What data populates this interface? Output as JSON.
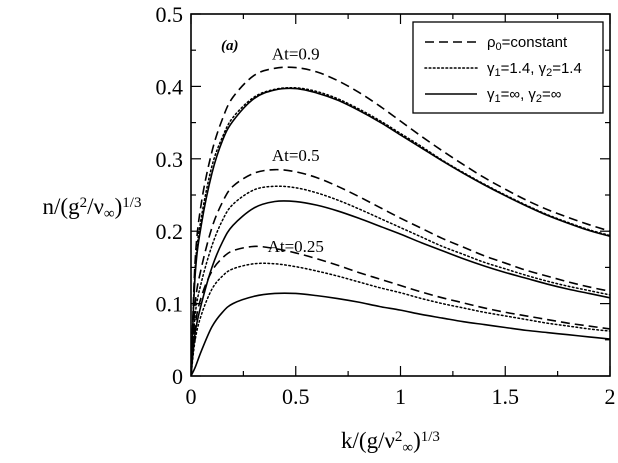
{
  "chart_data": {
    "type": "line",
    "panel_label": "(a)",
    "xlim": [
      0,
      2
    ],
    "ylim": [
      0,
      0.5
    ],
    "x_ticks": [
      "0",
      "0.5",
      "1",
      "1.5",
      "2"
    ],
    "y_ticks": [
      "0",
      "0.1",
      "0.2",
      "0.3",
      "0.4",
      "0.5"
    ],
    "xlabel": {
      "base": "k/(g/ν",
      "sup1": "2",
      "sub": "∞",
      "close": ")",
      "sup2": "1/3"
    },
    "ylabel": {
      "base": "n/(g",
      "sup1": "2",
      "mid": "/ν",
      "sub": "∞",
      "close": ")",
      "sup2": "1/3"
    },
    "legend": {
      "position": "top-right",
      "entries": [
        {
          "style": "dashed",
          "text": [
            [
              "ρ",
              ""
            ],
            [
              "0",
              "sub"
            ],
            [
              "=constant",
              ""
            ]
          ]
        },
        {
          "style": "dotted",
          "text": [
            [
              "γ",
              ""
            ],
            [
              "1",
              "sub"
            ],
            [
              "=1.4, γ",
              ""
            ],
            [
              "2",
              "sub"
            ],
            [
              "=1.4",
              ""
            ]
          ]
        },
        {
          "style": "solid",
          "text": [
            [
              "γ",
              ""
            ],
            [
              "1",
              "sub"
            ],
            [
              "=∞, γ",
              ""
            ],
            [
              "2",
              "sub"
            ],
            [
              "=∞",
              ""
            ]
          ]
        }
      ]
    },
    "annotations": [
      {
        "text": "At=0.9",
        "x": 0.5,
        "y": 0.437
      },
      {
        "text": "At=0.5",
        "x": 0.5,
        "y": 0.297
      },
      {
        "text": "At=0.25",
        "x": 0.5,
        "y": 0.171
      }
    ],
    "series": [
      {
        "group": "At=0.9",
        "style": "dashed",
        "x": [
          0,
          0.02,
          0.05,
          0.1,
          0.15,
          0.2,
          0.3,
          0.4,
          0.5,
          0.6,
          0.7,
          0.8,
          0.9,
          1.0,
          1.1,
          1.2,
          1.3,
          1.4,
          1.5,
          1.6,
          1.7,
          1.8,
          1.9,
          2.0
        ],
        "y": [
          0,
          0.16,
          0.24,
          0.31,
          0.355,
          0.385,
          0.415,
          0.425,
          0.426,
          0.42,
          0.408,
          0.392,
          0.373,
          0.352,
          0.331,
          0.311,
          0.292,
          0.274,
          0.258,
          0.243,
          0.23,
          0.219,
          0.209,
          0.2
        ]
      },
      {
        "group": "At=0.9",
        "style": "dotted",
        "x": [
          0,
          0.02,
          0.05,
          0.1,
          0.15,
          0.2,
          0.3,
          0.4,
          0.5,
          0.6,
          0.7,
          0.8,
          0.9,
          1.0,
          1.1,
          1.2,
          1.3,
          1.4,
          1.5,
          1.6,
          1.7,
          1.8,
          1.9,
          2.0
        ],
        "y": [
          0,
          0.15,
          0.22,
          0.29,
          0.33,
          0.357,
          0.385,
          0.396,
          0.398,
          0.393,
          0.383,
          0.369,
          0.353,
          0.335,
          0.317,
          0.298,
          0.281,
          0.265,
          0.25,
          0.236,
          0.223,
          0.212,
          0.202,
          0.194
        ]
      },
      {
        "group": "At=0.9",
        "style": "solid",
        "x": [
          0,
          0.02,
          0.05,
          0.1,
          0.15,
          0.2,
          0.3,
          0.4,
          0.5,
          0.6,
          0.7,
          0.8,
          0.9,
          1.0,
          1.1,
          1.2,
          1.3,
          1.4,
          1.5,
          1.6,
          1.7,
          1.8,
          1.9,
          2.0
        ],
        "y": [
          0,
          0.14,
          0.21,
          0.28,
          0.325,
          0.352,
          0.383,
          0.395,
          0.397,
          0.391,
          0.381,
          0.367,
          0.351,
          0.333,
          0.315,
          0.297,
          0.28,
          0.264,
          0.249,
          0.235,
          0.222,
          0.211,
          0.201,
          0.193
        ]
      },
      {
        "group": "At=0.5",
        "style": "dashed",
        "x": [
          0,
          0.02,
          0.05,
          0.1,
          0.15,
          0.2,
          0.3,
          0.4,
          0.5,
          0.6,
          0.7,
          0.8,
          0.9,
          1.0,
          1.1,
          1.2,
          1.3,
          1.4,
          1.5,
          1.6,
          1.7,
          1.8,
          1.9,
          2.0
        ],
        "y": [
          0,
          0.1,
          0.15,
          0.205,
          0.24,
          0.262,
          0.28,
          0.285,
          0.282,
          0.274,
          0.262,
          0.248,
          0.233,
          0.218,
          0.204,
          0.19,
          0.178,
          0.166,
          0.156,
          0.146,
          0.138,
          0.13,
          0.123,
          0.117
        ]
      },
      {
        "group": "At=0.5",
        "style": "dotted",
        "x": [
          0,
          0.02,
          0.05,
          0.1,
          0.15,
          0.2,
          0.3,
          0.4,
          0.5,
          0.6,
          0.7,
          0.8,
          0.9,
          1.0,
          1.1,
          1.2,
          1.3,
          1.4,
          1.5,
          1.6,
          1.7,
          1.8,
          1.9,
          2.0
        ],
        "y": [
          0,
          0.085,
          0.13,
          0.18,
          0.215,
          0.237,
          0.257,
          0.262,
          0.26,
          0.253,
          0.243,
          0.231,
          0.218,
          0.205,
          0.192,
          0.179,
          0.168,
          0.157,
          0.148,
          0.139,
          0.131,
          0.124,
          0.118,
          0.112
        ]
      },
      {
        "group": "At=0.5",
        "style": "solid",
        "x": [
          0,
          0.02,
          0.05,
          0.1,
          0.15,
          0.2,
          0.3,
          0.4,
          0.5,
          0.6,
          0.7,
          0.8,
          0.9,
          1.0,
          1.1,
          1.2,
          1.3,
          1.4,
          1.5,
          1.6,
          1.7,
          1.8,
          1.9,
          2.0
        ],
        "y": [
          0,
          0.06,
          0.1,
          0.15,
          0.185,
          0.208,
          0.232,
          0.241,
          0.241,
          0.236,
          0.228,
          0.218,
          0.207,
          0.196,
          0.184,
          0.173,
          0.162,
          0.152,
          0.143,
          0.135,
          0.127,
          0.12,
          0.114,
          0.108
        ]
      },
      {
        "group": "At=0.25",
        "style": "dashed",
        "x": [
          0,
          0.02,
          0.05,
          0.1,
          0.15,
          0.2,
          0.3,
          0.4,
          0.5,
          0.6,
          0.7,
          0.8,
          0.9,
          1.0,
          1.1,
          1.2,
          1.3,
          1.4,
          1.5,
          1.6,
          1.7,
          1.8,
          1.9,
          2.0
        ],
        "y": [
          0,
          0.07,
          0.11,
          0.145,
          0.163,
          0.173,
          0.179,
          0.176,
          0.17,
          0.162,
          0.153,
          0.143,
          0.134,
          0.125,
          0.116,
          0.108,
          0.101,
          0.094,
          0.088,
          0.083,
          0.078,
          0.073,
          0.069,
          0.065
        ]
      },
      {
        "group": "At=0.25",
        "style": "dotted",
        "x": [
          0,
          0.02,
          0.05,
          0.1,
          0.15,
          0.2,
          0.3,
          0.4,
          0.5,
          0.6,
          0.7,
          0.8,
          0.9,
          1.0,
          1.1,
          1.2,
          1.3,
          1.4,
          1.5,
          1.6,
          1.7,
          1.8,
          1.9,
          2.0
        ],
        "y": [
          0,
          0.05,
          0.085,
          0.12,
          0.138,
          0.148,
          0.155,
          0.155,
          0.151,
          0.145,
          0.138,
          0.13,
          0.122,
          0.115,
          0.107,
          0.1,
          0.094,
          0.088,
          0.083,
          0.078,
          0.073,
          0.069,
          0.065,
          0.062
        ]
      },
      {
        "group": "At=0.25",
        "style": "solid",
        "x": [
          0,
          0.02,
          0.05,
          0.1,
          0.15,
          0.2,
          0.3,
          0.4,
          0.5,
          0.6,
          0.7,
          0.8,
          0.9,
          1.0,
          1.1,
          1.2,
          1.3,
          1.4,
          1.5,
          1.6,
          1.7,
          1.8,
          1.9,
          2.0
        ],
        "y": [
          0,
          0.012,
          0.035,
          0.068,
          0.088,
          0.1,
          0.11,
          0.114,
          0.114,
          0.111,
          0.107,
          0.102,
          0.096,
          0.091,
          0.085,
          0.08,
          0.075,
          0.071,
          0.067,
          0.063,
          0.06,
          0.057,
          0.054,
          0.051
        ]
      }
    ]
  }
}
